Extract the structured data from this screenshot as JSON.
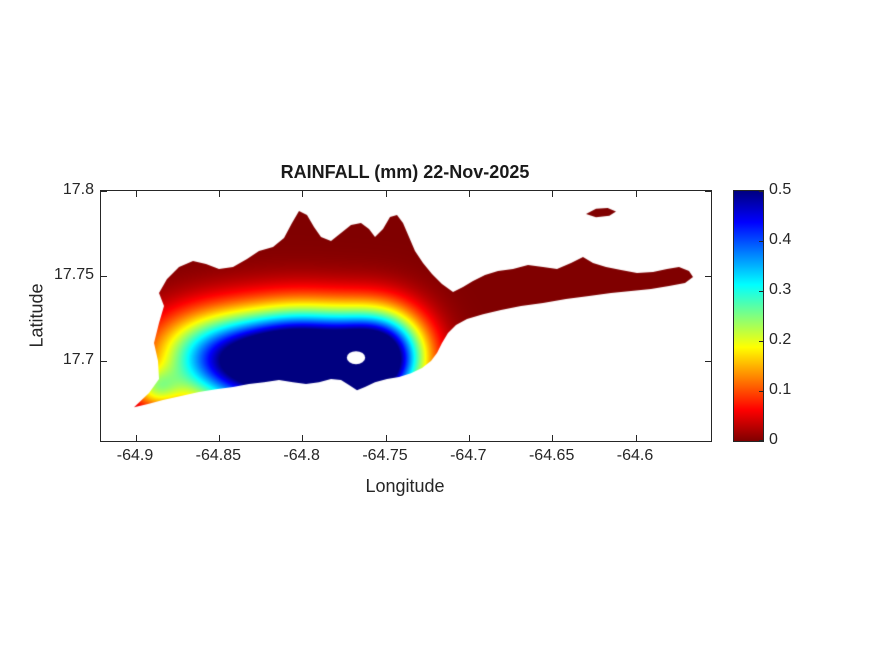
{
  "figure": {
    "title": "RAINFALL (mm) 22-Nov-2025",
    "xlabel": "Longitude",
    "ylabel": "Latitude",
    "background": "#ffffff"
  },
  "chart_data": {
    "type": "heatmap",
    "title": "RAINFALL (mm) 22-Nov-2025",
    "xlabel": "Longitude",
    "ylabel": "Latitude",
    "xlim": [
      -64.921,
      -64.555
    ],
    "ylim": [
      17.653,
      17.8
    ],
    "xticks": [
      -64.9,
      -64.85,
      -64.8,
      -64.75,
      -64.7,
      -64.65,
      -64.6
    ],
    "yticks": [
      17.7,
      17.75,
      17.8
    ],
    "grid": false,
    "legend": false,
    "colorbar": {
      "min": 0,
      "max": 0.5,
      "label_values": [
        0,
        0.1,
        0.2,
        0.3,
        0.4,
        0.5
      ],
      "colormap": "jet-reversed",
      "stops": [
        "#800000",
        "#ff0000",
        "#ffff00",
        "#00ffff",
        "#0000ff",
        "#000080"
      ],
      "stop_percents": [
        0,
        12.5,
        37.5,
        62.5,
        87.5,
        100
      ]
    },
    "island_outline": [
      [
        -64.9012,
        17.6729
      ],
      [
        -64.8922,
        17.6812
      ],
      [
        -64.8862,
        17.6894
      ],
      [
        -64.8868,
        17.7
      ],
      [
        -64.8892,
        17.7106
      ],
      [
        -64.8862,
        17.7224
      ],
      [
        -64.8832,
        17.7324
      ],
      [
        -64.8862,
        17.74
      ],
      [
        -64.8814,
        17.7482
      ],
      [
        -64.8742,
        17.7553
      ],
      [
        -64.8658,
        17.7588
      ],
      [
        -64.858,
        17.7571
      ],
      [
        -64.8502,
        17.7541
      ],
      [
        -64.8418,
        17.7553
      ],
      [
        -64.8334,
        17.76
      ],
      [
        -64.8262,
        17.7647
      ],
      [
        -64.8178,
        17.7671
      ],
      [
        -64.8112,
        17.7724
      ],
      [
        -64.8064,
        17.7812
      ],
      [
        -64.8022,
        17.7882
      ],
      [
        -64.7974,
        17.7859
      ],
      [
        -64.7932,
        17.7788
      ],
      [
        -64.789,
        17.7729
      ],
      [
        -64.783,
        17.7706
      ],
      [
        -64.777,
        17.7753
      ],
      [
        -64.771,
        17.78
      ],
      [
        -64.765,
        17.7812
      ],
      [
        -64.7602,
        17.7776
      ],
      [
        -64.7566,
        17.7729
      ],
      [
        -64.7518,
        17.7776
      ],
      [
        -64.7476,
        17.7847
      ],
      [
        -64.7434,
        17.7859
      ],
      [
        -64.7398,
        17.7812
      ],
      [
        -64.7362,
        17.7729
      ],
      [
        -64.7326,
        17.7647
      ],
      [
        -64.7278,
        17.7576
      ],
      [
        -64.7224,
        17.7512
      ],
      [
        -64.7164,
        17.7453
      ],
      [
        -64.7098,
        17.7406
      ],
      [
        -64.7038,
        17.7435
      ],
      [
        -64.6978,
        17.7471
      ],
      [
        -64.6906,
        17.7506
      ],
      [
        -64.6828,
        17.7529
      ],
      [
        -64.6738,
        17.7541
      ],
      [
        -64.6648,
        17.7565
      ],
      [
        -64.6558,
        17.7553
      ],
      [
        -64.6474,
        17.7541
      ],
      [
        -64.639,
        17.7576
      ],
      [
        -64.6318,
        17.7612
      ],
      [
        -64.6258,
        17.7576
      ],
      [
        -64.618,
        17.7553
      ],
      [
        -64.609,
        17.7535
      ],
      [
        -64.5994,
        17.7518
      ],
      [
        -64.5898,
        17.7524
      ],
      [
        -64.5814,
        17.7541
      ],
      [
        -64.5742,
        17.7553
      ],
      [
        -64.5682,
        17.7529
      ],
      [
        -64.5658,
        17.7494
      ],
      [
        -64.5706,
        17.7459
      ],
      [
        -64.5802,
        17.7441
      ],
      [
        -64.591,
        17.7424
      ],
      [
        -64.603,
        17.7412
      ],
      [
        -64.615,
        17.74
      ],
      [
        -64.6282,
        17.7382
      ],
      [
        -64.642,
        17.7365
      ],
      [
        -64.6558,
        17.7341
      ],
      [
        -64.669,
        17.7324
      ],
      [
        -64.681,
        17.73
      ],
      [
        -64.6918,
        17.7276
      ],
      [
        -64.7014,
        17.7247
      ],
      [
        -64.708,
        17.7212
      ],
      [
        -64.7128,
        17.7165
      ],
      [
        -64.7164,
        17.7106
      ],
      [
        -64.7194,
        17.7047
      ],
      [
        -64.723,
        17.7
      ],
      [
        -64.7284,
        17.6959
      ],
      [
        -64.735,
        17.6929
      ],
      [
        -64.7422,
        17.6906
      ],
      [
        -64.7494,
        17.6894
      ],
      [
        -64.7566,
        17.6876
      ],
      [
        -64.7626,
        17.6847
      ],
      [
        -64.7674,
        17.6829
      ],
      [
        -64.7722,
        17.6859
      ],
      [
        -64.777,
        17.6888
      ],
      [
        -64.783,
        17.6894
      ],
      [
        -64.7902,
        17.6876
      ],
      [
        -64.798,
        17.6865
      ],
      [
        -64.8058,
        17.6876
      ],
      [
        -64.8142,
        17.6888
      ],
      [
        -64.8232,
        17.6876
      ],
      [
        -64.8322,
        17.6865
      ],
      [
        -64.8418,
        17.6847
      ],
      [
        -64.852,
        17.6835
      ],
      [
        -64.8622,
        17.6818
      ],
      [
        -64.873,
        17.6794
      ],
      [
        -64.8838,
        17.6771
      ],
      [
        -64.8928,
        17.6747
      ]
    ],
    "buck_island_outline": [
      [
        -64.63,
        17.7865
      ],
      [
        -64.624,
        17.7895
      ],
      [
        -64.617,
        17.79
      ],
      [
        -64.612,
        17.788
      ],
      [
        -64.616,
        17.7855
      ],
      [
        -64.624,
        17.7845
      ]
    ],
    "pond": {
      "lon": -64.768,
      "lat": 17.702,
      "rx": 0.0055,
      "ry": 0.0038
    },
    "rain_centers": [
      {
        "lon": -64.815,
        "lat": 17.698,
        "amp": 0.55,
        "sx": 0.03,
        "sy": 0.02
      },
      {
        "lon": -64.753,
        "lat": 17.702,
        "amp": 0.5,
        "sx": 0.018,
        "sy": 0.018
      },
      {
        "lon": -64.858,
        "lat": 17.703,
        "amp": 0.22,
        "sx": 0.025,
        "sy": 0.018
      },
      {
        "lon": -64.768,
        "lat": 17.69,
        "amp": 0.3,
        "sx": 0.012,
        "sy": 0.01
      },
      {
        "lon": -64.787,
        "lat": 17.705,
        "amp": 0.3,
        "sx": 0.025,
        "sy": 0.018
      },
      {
        "lon": -64.888,
        "lat": 17.684,
        "amp": 0.15,
        "sx": 0.01,
        "sy": 0.008
      }
    ]
  }
}
